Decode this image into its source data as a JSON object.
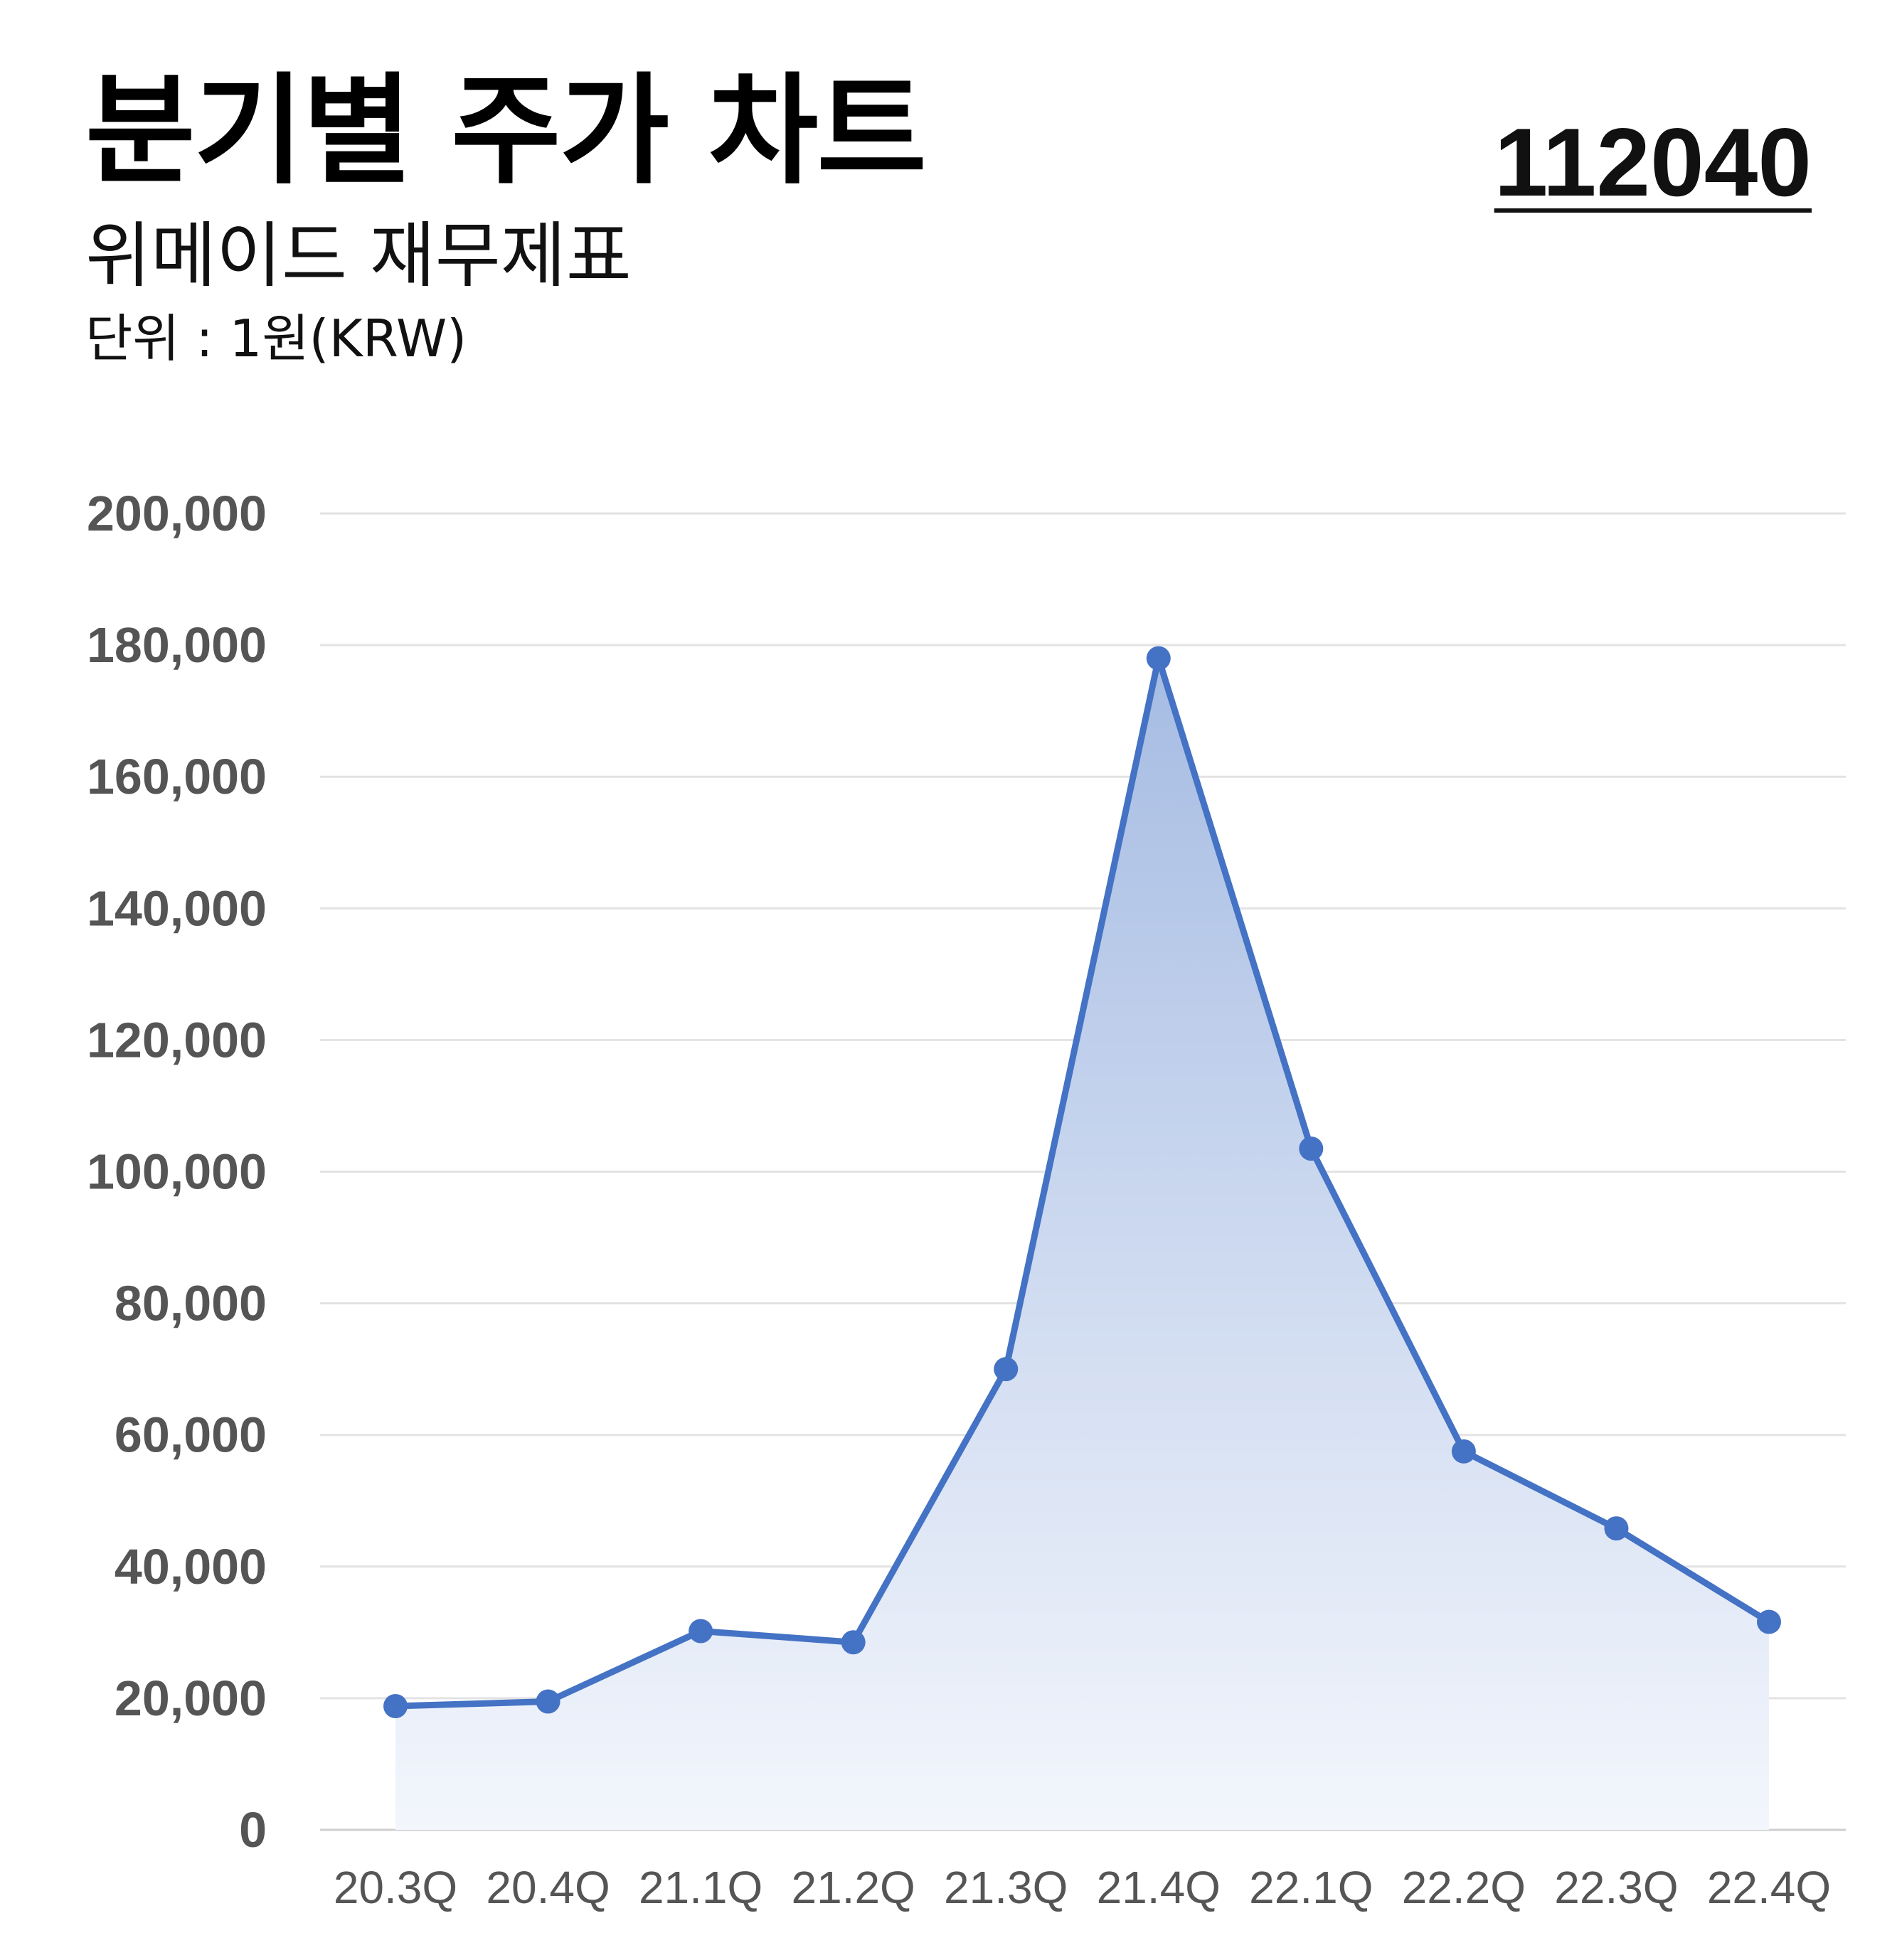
{
  "header": {
    "title": "분기별 주가 차트",
    "subtitle": "위메이드 재무제표",
    "unit": "단위 : 1원(KRW)",
    "code": "112040"
  },
  "colors": {
    "line": "#4472C4",
    "fill_top": "#A6BCE3",
    "fill_bottom": "#F3F6FC",
    "grid": "#E3E3E3",
    "tick_text": "#555555"
  },
  "chart_data": {
    "type": "area",
    "categories": [
      "20.3Q",
      "20.4Q",
      "21.1Q",
      "21.2Q",
      "21.3Q",
      "21.4Q",
      "22.1Q",
      "22.2Q",
      "22.3Q",
      "22.4Q"
    ],
    "series": [
      {
        "values": [
          18800,
          19500,
          30200,
          28500,
          70000,
          178000,
          103500,
          57500,
          45800,
          31600
        ]
      }
    ],
    "ylim": [
      0,
      200000
    ],
    "yticks": [
      "0",
      "20,000",
      "40,000",
      "60,000",
      "80,000",
      "100,000",
      "120,000",
      "140,000",
      "160,000",
      "180,000",
      "200,000"
    ],
    "ytick_values": [
      0,
      20000,
      40000,
      60000,
      80000,
      100000,
      120000,
      140000,
      160000,
      180000,
      200000
    ],
    "grid": true,
    "markers": true
  }
}
